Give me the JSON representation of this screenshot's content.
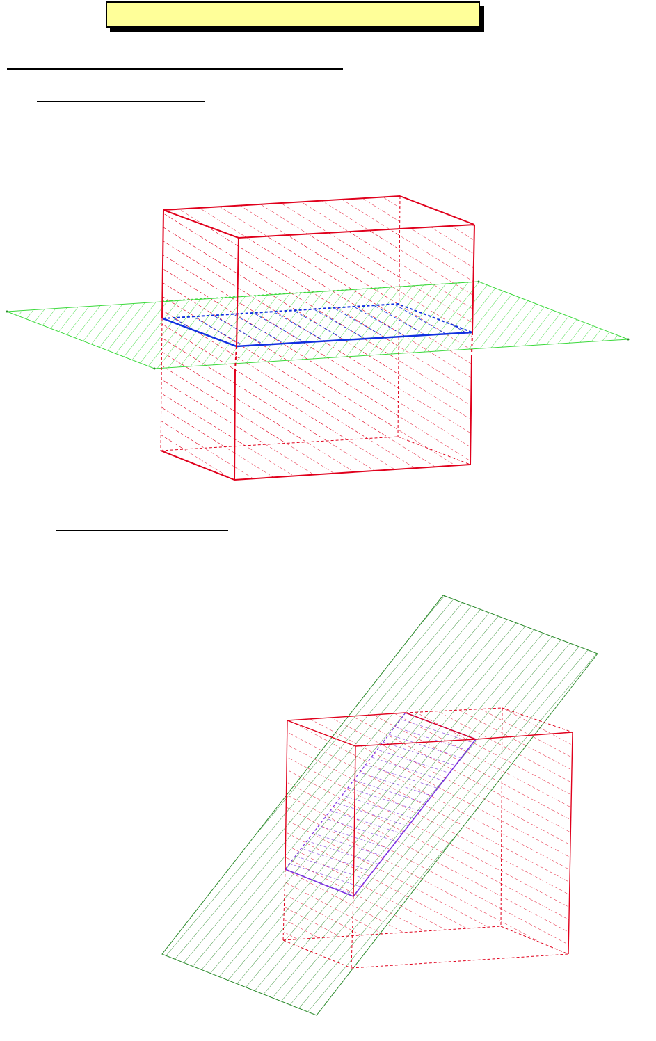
{
  "page": {
    "title_box": {
      "text": ""
    },
    "headings": {
      "section": "",
      "part_1": "",
      "part_2": ""
    }
  },
  "colors": {
    "prism": "#e0001c",
    "plane_1": "#3bd93b",
    "section_1": "#1030e0",
    "plane_2": "#2a8a2a",
    "section_2": "#7b2fe0",
    "title_fill": "#ffff99"
  },
  "figures": [
    {
      "name": "figure-1",
      "description_icons": [
        "rectangular-prism",
        "horizontal-cutting-plane",
        "rectangular-cross-section"
      ]
    },
    {
      "name": "figure-2",
      "description_icons": [
        "rectangular-prism",
        "oblique-cutting-plane",
        "slanted-cross-section"
      ]
    }
  ]
}
